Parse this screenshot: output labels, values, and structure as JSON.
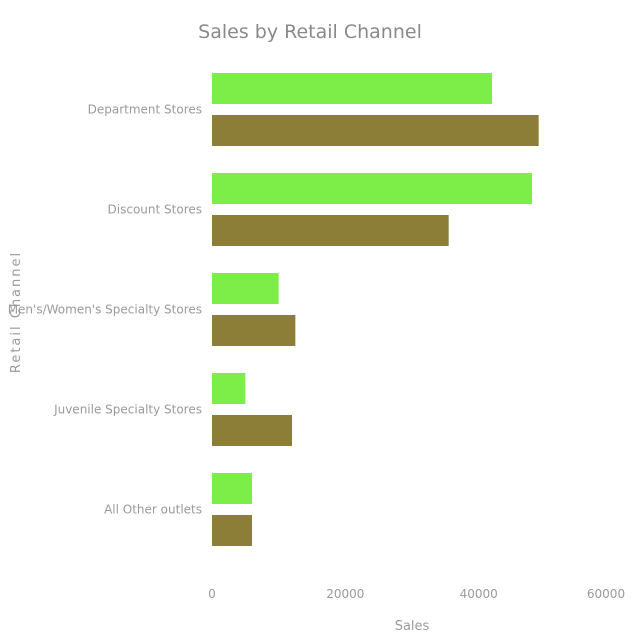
{
  "chart_data": {
    "type": "bar",
    "orientation": "horizontal",
    "title": "Sales by Retail Channel",
    "xlabel": "Sales",
    "ylabel": "Retail Channel",
    "categories": [
      "Department Stores",
      "Discount Stores",
      "Men's/Women's Specialty Stores",
      "Juvenile Specialty Stores",
      "All Other outlets"
    ],
    "series": [
      {
        "values": [
          42000,
          48000,
          10000,
          5000,
          6000
        ],
        "color": "#7ded48"
      },
      {
        "values": [
          49000,
          35500,
          12500,
          12000,
          6000
        ],
        "color": "#8c7e36"
      }
    ],
    "xlim": [
      0,
      60000
    ],
    "xticks": [
      0,
      20000,
      40000,
      60000
    ],
    "xtick_labels": [
      "0",
      "20000",
      "40000",
      "60000"
    ],
    "grid": false,
    "legend": "none"
  },
  "style": {
    "text_color": "#9a9a9a",
    "title_color": "#8a8a8a"
  }
}
